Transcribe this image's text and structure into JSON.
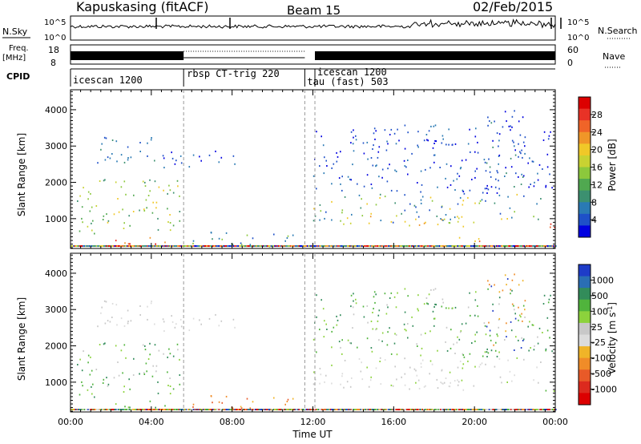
{
  "header": {
    "station": "Kapuskasing (fitACF)",
    "beam": "Beam 15",
    "date": "02/Feb/2015"
  },
  "top_panels": {
    "nsky_label": "N.Sky",
    "nsearch_label": "N.Search",
    "nsky_ticks": [
      "10^5",
      "10^0"
    ],
    "nsearch_ticks": [
      "10^5",
      "10^0"
    ],
    "freq_label_1": "Freq.",
    "freq_label_2": "[MHz]",
    "freq_ticks": [
      "18",
      "8"
    ],
    "nave_label": "Nave",
    "nave_ticks": [
      "60",
      "0"
    ],
    "cpid_label": "CPID",
    "cpid_segments": [
      {
        "label": "icescan 1200",
        "start": 0,
        "end": 5.6
      },
      {
        "label": "rbsp CT-trig 220",
        "start": 5.6,
        "end": 11.6
      },
      {
        "label": "icescan 1200",
        "start": 12.1,
        "end": 24
      },
      {
        "label": "tau (fast) 503",
        "start": 11.6,
        "end": 12.1
      }
    ]
  },
  "chart_data": [
    {
      "type": "heatmap",
      "panel": "power",
      "ylabel": "Slant Range [km]",
      "ylim": [
        180,
        4550
      ],
      "xlim": [
        0,
        24
      ],
      "yticks": [
        "1000",
        "2000",
        "3000",
        "4000"
      ],
      "colorbar_label": "Power [dB]",
      "colorbar_ticks": [
        "28",
        "24",
        "20",
        "16",
        "12",
        "8",
        "4"
      ],
      "colorbar_colors": [
        "#0000e0",
        "#1e50c8",
        "#2a7ab4",
        "#3c9070",
        "#50a850",
        "#8cc83c",
        "#c8d232",
        "#f0c828",
        "#f09628",
        "#f06428",
        "#e83226",
        "#dc0000"
      ],
      "blobs": [
        {
          "x0": 0.0,
          "x1": 5.4,
          "y0": 600,
          "y1": 2100,
          "c": [
            3,
            4,
            5,
            6,
            7
          ]
        },
        {
          "x0": 2.2,
          "x1": 4.9,
          "y0": 320,
          "y1": 500,
          "c": [
            8,
            9,
            10,
            11
          ]
        },
        {
          "x0": 1.2,
          "x1": 4.2,
          "y0": 2500,
          "y1": 3300,
          "c": [
            1,
            2,
            3
          ]
        },
        {
          "x0": 4.5,
          "x1": 8.4,
          "y0": 2400,
          "y1": 2900,
          "c": [
            0,
            1,
            2
          ]
        },
        {
          "x0": 5.3,
          "x1": 11.2,
          "y0": 250,
          "y1": 650,
          "c": [
            1,
            2,
            3,
            5
          ]
        },
        {
          "x0": 12.0,
          "x1": 23.9,
          "y0": 900,
          "y1": 1700,
          "c": [
            1,
            2,
            3,
            5,
            7
          ]
        },
        {
          "x0": 13.0,
          "x1": 21.5,
          "y0": 800,
          "y1": 1100,
          "c": [
            6,
            7,
            8
          ]
        },
        {
          "x0": 19.2,
          "x1": 21.6,
          "y0": 350,
          "y1": 600,
          "c": [
            7,
            8,
            9
          ]
        },
        {
          "x0": 12.0,
          "x1": 24.0,
          "y0": 1700,
          "y1": 3600,
          "c": [
            0,
            1,
            2
          ]
        },
        {
          "x0": 20.5,
          "x1": 22.5,
          "y0": 1800,
          "y1": 4000,
          "c": [
            0,
            1,
            3
          ]
        },
        {
          "x0": 23.5,
          "x1": 24.0,
          "y0": 600,
          "y1": 900,
          "c": [
            9,
            10
          ]
        }
      ]
    },
    {
      "type": "heatmap",
      "panel": "velocity",
      "xlabel": "Time UT",
      "ylabel": "Slant Range [km]",
      "ylim": [
        180,
        4550
      ],
      "xlim": [
        0,
        24
      ],
      "xticks": [
        "00:00",
        "04:00",
        "08:00",
        "12:00",
        "16:00",
        "20:00",
        "00:00"
      ],
      "yticks": [
        "1000",
        "2000",
        "3000",
        "4000"
      ],
      "colorbar_label": "Velocity [m s^-1]",
      "colorbar_ticks": [
        "1000",
        "500",
        "100",
        "25",
        "-25",
        "-100",
        "-500",
        "-1000"
      ],
      "colorbar_colors": [
        "#1e3cc8",
        "#2a6eb4",
        "#328c5a",
        "#50b43c",
        "#8cd23c",
        "#c8c8c8",
        "#dcdcdc",
        "#f0b428",
        "#f08c28",
        "#e85a28",
        "#dc2a1e",
        "#dc0000"
      ],
      "blobs": [
        {
          "x0": 0.0,
          "x1": 5.4,
          "y0": 600,
          "y1": 2100,
          "c": [
            2,
            3,
            4,
            5
          ]
        },
        {
          "x0": 2.2,
          "x1": 4.9,
          "y0": 320,
          "y1": 500,
          "c": [
            3,
            4,
            2
          ]
        },
        {
          "x0": 1.2,
          "x1": 4.2,
          "y0": 2500,
          "y1": 3300,
          "c": [
            5,
            6
          ]
        },
        {
          "x0": 4.5,
          "x1": 8.4,
          "y0": 2400,
          "y1": 2900,
          "c": [
            5,
            6
          ]
        },
        {
          "x0": 5.3,
          "x1": 11.2,
          "y0": 250,
          "y1": 650,
          "c": [
            7,
            8,
            9
          ]
        },
        {
          "x0": 12.0,
          "x1": 23.9,
          "y0": 900,
          "y1": 1700,
          "c": [
            5,
            6,
            5,
            6,
            4
          ]
        },
        {
          "x0": 13.0,
          "x1": 21.5,
          "y0": 800,
          "y1": 1100,
          "c": [
            5,
            6
          ]
        },
        {
          "x0": 12.0,
          "x1": 24.0,
          "y0": 1700,
          "y1": 3600,
          "c": [
            2,
            3,
            4,
            5
          ]
        },
        {
          "x0": 20.5,
          "x1": 22.5,
          "y0": 1800,
          "y1": 4000,
          "c": [
            7,
            8,
            0
          ]
        },
        {
          "x0": 23.3,
          "x1": 24.0,
          "y0": 500,
          "y1": 900,
          "c": [
            3,
            4
          ]
        }
      ]
    }
  ]
}
